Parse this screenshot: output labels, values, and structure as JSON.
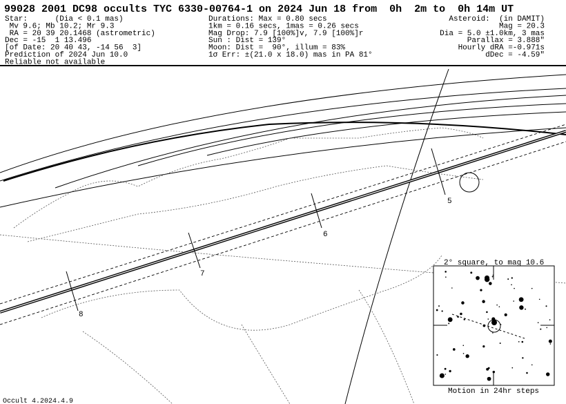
{
  "header": {
    "title": "99028 2001 DC98 occults TYC 6330-00764-1 on 2024 Jun 18 from  0h  2m to  0h 14m UT",
    "left": [
      "Star:      (Dia < 0.1 mas)",
      " Mv 9.6; Mb 10.2; Mr 9.3",
      " RA = 20 39 20.1468 (astrometric)",
      "Dec = -15  1 13.496",
      "[of Date: 20 40 43, -14 56  3]",
      "Prediction of 2024 Jun 10.0",
      "Reliable not available"
    ],
    "middle": [
      "Durations: Max = 0.80 secs",
      "1km = 0.16 secs, 1mas = 0.26 secs",
      "Mag Drop: 7.9 [100%]v, 7.9 [100%]r",
      "Sun : Dist = 139°",
      "Moon: Dist =  90°, illum = 83%",
      "1σ Err: ±(21.0 x 18.0) mas in PA 81°"
    ],
    "right": [
      "Asteroid:  (in DAMIT)",
      "Mag = 20.3",
      "Dia = 5.0 ±1.0km, 3 mas",
      "Parallax = 3.888\"",
      "Hourly dRA =-0.971s",
      "dDec = -4.59\""
    ]
  },
  "map": {
    "time_labels": [
      "5",
      "6",
      "7",
      "8"
    ]
  },
  "inset": {
    "title": "2° square, to mag 10.6",
    "caption": "Motion in 24hr steps"
  },
  "footer": "Occult 4.2024.4.9"
}
